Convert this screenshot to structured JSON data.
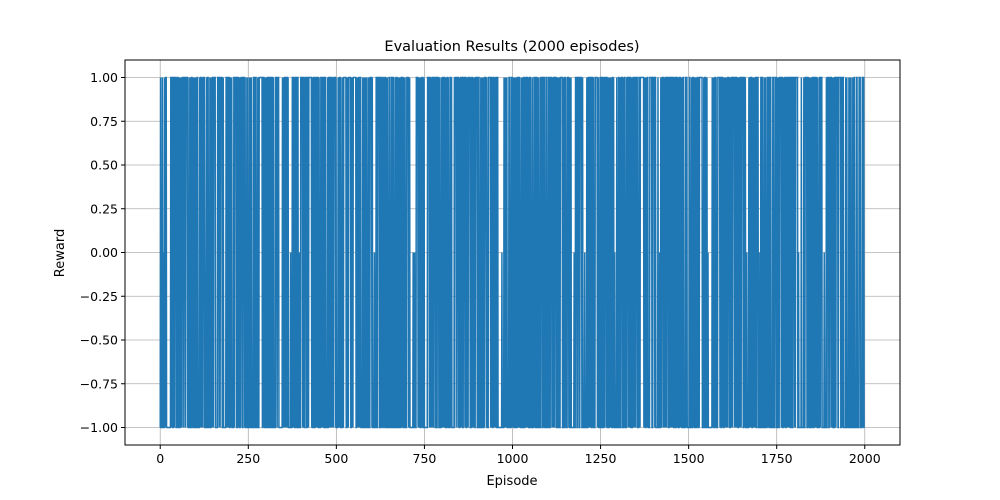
{
  "chart_data": {
    "type": "line",
    "title": "Evaluation Results (2000 episodes)",
    "xlabel": "Episode",
    "ylabel": "Reward",
    "xlim": [
      -100,
      2100
    ],
    "ylim": [
      -1.1,
      1.1
    ],
    "xticks": [
      0,
      250,
      500,
      750,
      1000,
      1250,
      1500,
      1750,
      2000
    ],
    "xtick_labels": [
      "0",
      "250",
      "500",
      "750",
      "1000",
      "1250",
      "1500",
      "1750",
      "2000"
    ],
    "yticks": [
      1.0,
      0.75,
      0.5,
      0.25,
      0.0,
      -0.25,
      -0.5,
      -0.75,
      -1.0
    ],
    "ytick_labels": [
      "1.00",
      "0.75",
      "0.50",
      "0.25",
      "0.00",
      "−0.25",
      "−0.50",
      "−0.75",
      "−1.00"
    ],
    "grid": true,
    "color": "#1f77b4",
    "series": [
      {
        "x_start": 0,
        "x_end": 1999,
        "values_summary": "per-episode reward alternating among -1, 0 and 1",
        "possible_values": [
          -1,
          0,
          1
        ],
        "episodes_at_zero": [
          8,
          130,
          270,
          370,
          395,
          608,
          680,
          718,
          722,
          925,
          970,
          1175,
          1205,
          1290,
          1418,
          1555,
          1665,
          1700,
          1812,
          1885
        ],
        "episodes_without_win": [
          [
            20,
            28
          ],
          [
            180,
            186
          ],
          [
            368,
            374
          ],
          [
            392,
            398
          ],
          [
            604,
            612
          ],
          [
            712,
            722
          ],
          [
            960,
            966
          ],
          [
            1170,
            1178
          ],
          [
            1203,
            1210
          ],
          [
            1288,
            1294
          ],
          [
            1414,
            1420
          ],
          [
            1553,
            1559
          ],
          [
            1662,
            1670
          ],
          [
            1698,
            1704
          ],
          [
            1810,
            1815
          ],
          [
            1880,
            1886
          ],
          [
            1950,
            1954
          ]
        ],
        "episodes_without_loss": [
          [
            130,
            131
          ],
          [
            548,
            552
          ],
          [
            1392,
            1394
          ],
          [
            1400,
            1403
          ],
          [
            1808,
            1810
          ]
        ]
      }
    ]
  }
}
